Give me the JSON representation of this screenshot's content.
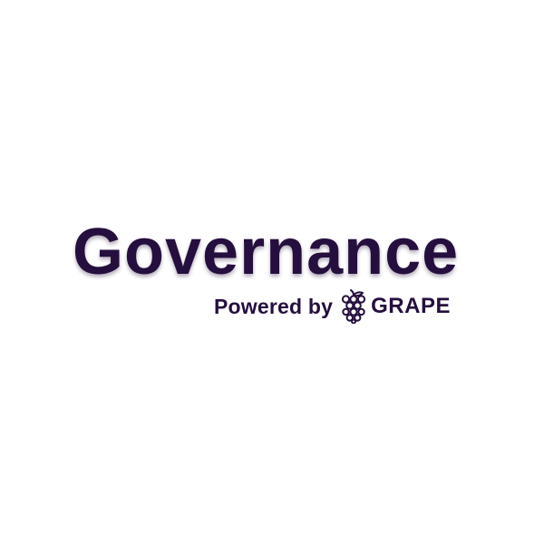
{
  "logo": {
    "title": "Governance",
    "powered_by": "Powered by",
    "brand": "GRAPE",
    "icon": "grape-icon",
    "colors": {
      "text": "#250f3e",
      "background": "#ffffff"
    }
  }
}
